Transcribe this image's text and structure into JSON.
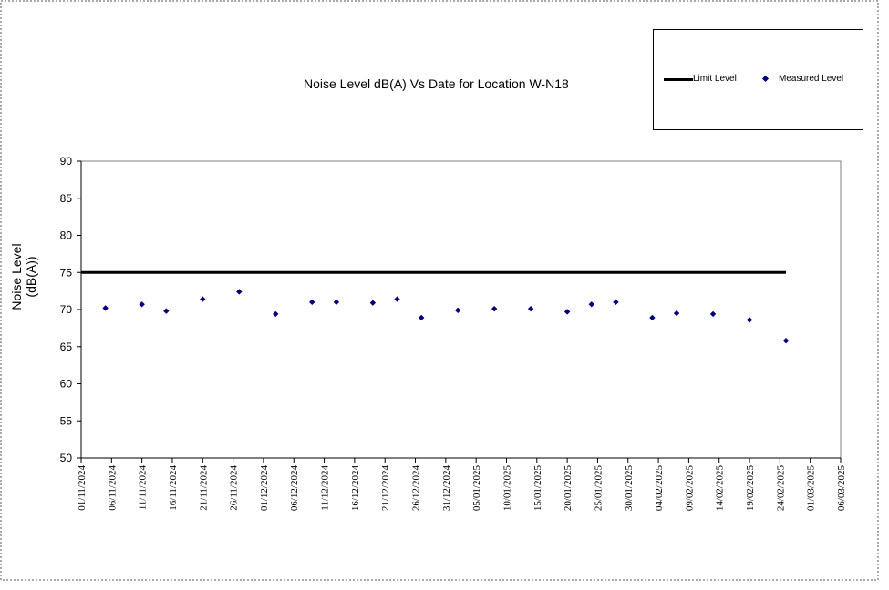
{
  "chart_data": {
    "type": "scatter",
    "title": "Noise Level dB(A) Vs Date for Location W-N18",
    "xlabel": "",
    "ylabel_lines": [
      "Noise Level",
      "(dB(A))"
    ],
    "ylim": [
      50,
      90
    ],
    "yticks": [
      50,
      55,
      60,
      65,
      70,
      75,
      80,
      85,
      90
    ],
    "xlim": [
      "01/11/2024",
      "06/03/2025"
    ],
    "xticks": [
      "01/11/2024",
      "06/11/2024",
      "11/11/2024",
      "16/11/2024",
      "21/11/2024",
      "26/11/2024",
      "01/12/2024",
      "06/12/2024",
      "11/12/2024",
      "16/12/2024",
      "21/12/2024",
      "26/12/2024",
      "31/12/2024",
      "05/01/2025",
      "10/01/2025",
      "15/01/2025",
      "20/01/2025",
      "25/01/2025",
      "30/01/2025",
      "04/02/2025",
      "09/02/2025",
      "14/02/2025",
      "19/02/2025",
      "24/02/2025",
      "01/03/2025",
      "06/03/2025"
    ],
    "grid": false,
    "legend_position": "top-right",
    "series": [
      {
        "name": "Limit Level",
        "kind": "line",
        "color": "#000000",
        "x": [
          "01/11/2024",
          "25/02/2025"
        ],
        "y": [
          75,
          75
        ]
      },
      {
        "name": "Measured Level",
        "kind": "scatter",
        "color": "#00007f",
        "x": [
          "05/11/2024",
          "11/11/2024",
          "15/11/2024",
          "21/11/2024",
          "27/11/2024",
          "03/12/2024",
          "09/12/2024",
          "13/12/2024",
          "19/12/2024",
          "23/12/2024",
          "27/12/2024",
          "02/01/2025",
          "08/01/2025",
          "14/01/2025",
          "20/01/2025",
          "24/01/2025",
          "28/01/2025",
          "03/02/2025",
          "07/02/2025",
          "13/02/2025",
          "19/02/2025",
          "25/02/2025"
        ],
        "y": [
          70.2,
          70.7,
          69.8,
          71.4,
          72.4,
          69.4,
          71.0,
          71.0,
          70.9,
          71.4,
          68.9,
          69.9,
          70.1,
          70.1,
          69.7,
          70.7,
          71.0,
          68.9,
          69.5,
          69.4,
          68.6,
          65.8
        ]
      }
    ]
  }
}
